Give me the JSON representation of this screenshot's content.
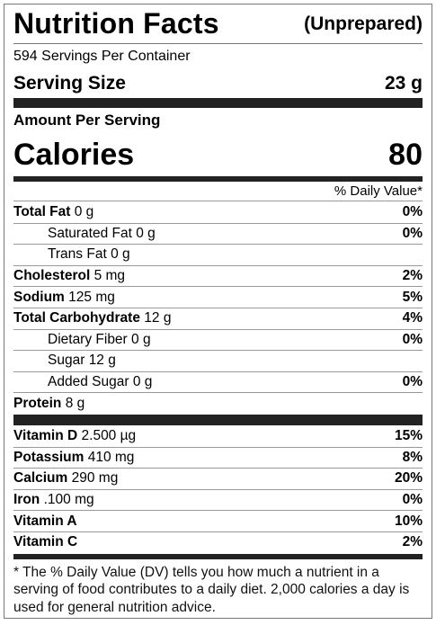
{
  "header": {
    "title": "Nutrition Facts",
    "subtitle": "(Unprepared)"
  },
  "servings": "594 Servings Per Container",
  "serving_size": {
    "label": "Serving Size",
    "value": "23 g"
  },
  "amount_per_serving": "Amount Per Serving",
  "calories": {
    "label": "Calories",
    "value": "80"
  },
  "daily_value_header": "% Daily Value*",
  "nutrients": [
    {
      "name": "Total Fat",
      "amount": "0 g",
      "dv": "0%",
      "indent": false
    },
    {
      "name": "Saturated Fat",
      "amount": "0 g",
      "dv": "0%",
      "indent": true
    },
    {
      "name": "Trans Fat",
      "amount": "0 g",
      "indent": true
    },
    {
      "name": "Cholesterol",
      "amount": "5 mg",
      "dv": "2%",
      "indent": false
    },
    {
      "name": "Sodium",
      "amount": "125 mg",
      "dv": "5%",
      "indent": false
    },
    {
      "name": "Total Carbohydrate",
      "amount": "12 g",
      "dv": "4%",
      "indent": false
    },
    {
      "name": "Dietary Fiber",
      "amount": "0 g",
      "dv": "0%",
      "indent": true
    },
    {
      "name": "Sugar",
      "amount": "12 g",
      "indent": true
    },
    {
      "name": "Added Sugar",
      "amount": "0 g",
      "dv": "0%",
      "indent": true
    },
    {
      "name": "Protein",
      "amount": "8 g",
      "indent": false
    }
  ],
  "vitamins": [
    {
      "name": "Vitamin D",
      "amount": "2.500 µg",
      "dv": "15%"
    },
    {
      "name": "Potassium",
      "amount": "410 mg",
      "dv": "8%"
    },
    {
      "name": "Calcium",
      "amount": "290 mg",
      "dv": "20%"
    },
    {
      "name": "Iron",
      "amount": ".100 mg",
      "dv": "0%"
    },
    {
      "name": "Vitamin A",
      "dv": "10%"
    },
    {
      "name": "Vitamin C",
      "dv": "2%"
    }
  ],
  "footnote": "* The % Daily Value (DV) tells you how much a nutrient in a serving of food contributes to a daily diet. 2,000 calories a day is used for general nutrition advice."
}
